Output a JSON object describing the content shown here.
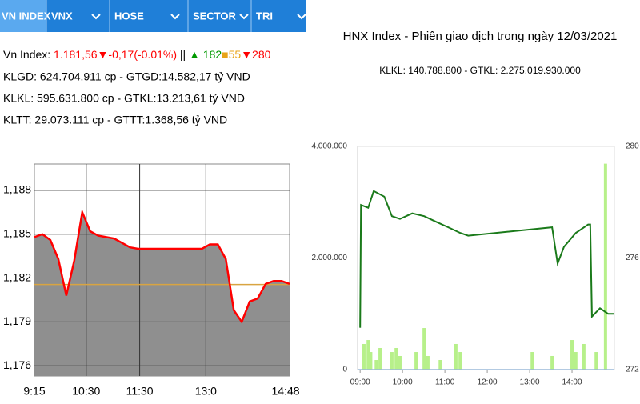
{
  "tabs": [
    "VN INDEX",
    "VNX",
    "HOSE",
    "SECTOR",
    "TRI"
  ],
  "index_line": [
    {
      "text": "Vn Index: ",
      "color": "#000000"
    },
    {
      "text": "1.181,56",
      "color": "#ff0000"
    },
    {
      "text": "▼-0,17(-0.01%)",
      "color": "#ff0000"
    },
    {
      "text": " || ",
      "color": "#000000"
    },
    {
      "text": "▲ 182",
      "color": "#009900"
    },
    {
      "text": "■55",
      "color": "#e8a317"
    },
    {
      "text": "▼280",
      "color": "#ff0000"
    }
  ],
  "info_lines": [
    "KLGD: 624.704.911 cp - GTGD:14.582,17 tỷ VND",
    "KLKL: 595.631.800 cp - GTKL:13.213,61 tỷ VND",
    "KLTT: 29.073.111 cp - GTTT:1.368,56 tỷ VND"
  ],
  "chart_data": [
    {
      "type": "area",
      "series": [
        {
          "color": "#ff0000",
          "fill": "#8f8f8f",
          "values": [
            1184.8,
            1185.0,
            1184.6,
            1183.3,
            1180.8,
            1183.2,
            1186.5,
            1185.2,
            1184.9,
            1184.8,
            1184.7,
            1184.4,
            1184.1,
            1184.0,
            1184.0,
            1184.0,
            1184.0,
            1184.0,
            1184.0,
            1184.0,
            1184.0,
            1184.0,
            1184.3,
            1184.3,
            1183.3,
            1179.8,
            1179.0,
            1180.4,
            1180.6,
            1181.6,
            1181.8,
            1181.8,
            1181.6
          ]
        }
      ],
      "reference": 1181.56,
      "reference_color": "#d9a441",
      "xlim": [
        0,
        32
      ],
      "xticks": [
        {
          "value": 0,
          "label": "9:15"
        },
        {
          "value": 6.5,
          "label": "10:30"
        },
        {
          "value": 13.2,
          "label": "11:30"
        },
        {
          "value": 21.5,
          "label": "13:0"
        },
        {
          "value": 31.5,
          "label": "14:48"
        }
      ],
      "ylim": [
        1175.3,
        1189.8
      ],
      "yticks": [
        {
          "value": 1176,
          "label": "1,176"
        },
        {
          "value": 1179,
          "label": "1,179"
        },
        {
          "value": 1182,
          "label": "1,182"
        },
        {
          "value": 1185,
          "label": "1,185"
        },
        {
          "value": 1188,
          "label": "1,188"
        }
      ],
      "grid": true
    },
    {
      "type": "combo",
      "title": "HNX Index - Phiên giao dịch trong ngày 12/03/2021",
      "subtitle": "KLKL: 140.788.800 - GTKL: 2.275.019.930.000",
      "series": [
        {
          "type": "bar",
          "color": "#b7f08a",
          "x": [
            9.09,
            9.19,
            9.25,
            9.38,
            9.47,
            9.75,
            9.85,
            9.94,
            10.32,
            10.51,
            10.6,
            10.89,
            11.26,
            11.36,
            13.06,
            13.53,
            14.0,
            14.09,
            14.28,
            14.57,
            14.79
          ],
          "values": [
            459000,
            530000,
            315000,
            172000,
            387000,
            315000,
            387000,
            244000,
            315000,
            745000,
            244000,
            172000,
            459000,
            315000,
            315000,
            244000,
            530000,
            315000,
            459000,
            315000,
            3690000
          ]
        },
        {
          "type": "line",
          "axis": "y2",
          "color": "#1a7a1a",
          "x": [
            9.0,
            9.02,
            9.19,
            9.32,
            9.57,
            9.75,
            9.94,
            10.23,
            10.51,
            10.79,
            11.08,
            11.36,
            11.55,
            13.53,
            13.66,
            13.81,
            14.09,
            14.38,
            14.43,
            14.47,
            14.66,
            14.85,
            15.0
          ],
          "values": [
            273.5,
            277.9,
            277.8,
            278.4,
            278.2,
            277.5,
            277.4,
            277.6,
            277.5,
            277.3,
            277.1,
            276.9,
            276.8,
            277.1,
            275.8,
            276.4,
            276.9,
            277.2,
            277.2,
            273.9,
            274.2,
            274.0,
            274.0
          ]
        }
      ],
      "xlim": [
        8.94,
        15.0
      ],
      "xticks": [
        {
          "value": 9,
          "label": "09:00"
        },
        {
          "value": 10,
          "label": "10:00"
        },
        {
          "value": 11,
          "label": "11:00"
        },
        {
          "value": 12,
          "label": "12:00"
        },
        {
          "value": 13,
          "label": "13:00"
        },
        {
          "value": 14,
          "label": "14:00"
        }
      ],
      "ylim": [
        0,
        4000000
      ],
      "yticks": [
        0,
        {
          "value": 2000000,
          "label": "2.000.000"
        },
        {
          "value": 4000000,
          "label": "4.000.000"
        }
      ],
      "y2lim": [
        272,
        280
      ],
      "y2ticks": [
        272,
        276,
        280
      ],
      "grid": false
    }
  ]
}
